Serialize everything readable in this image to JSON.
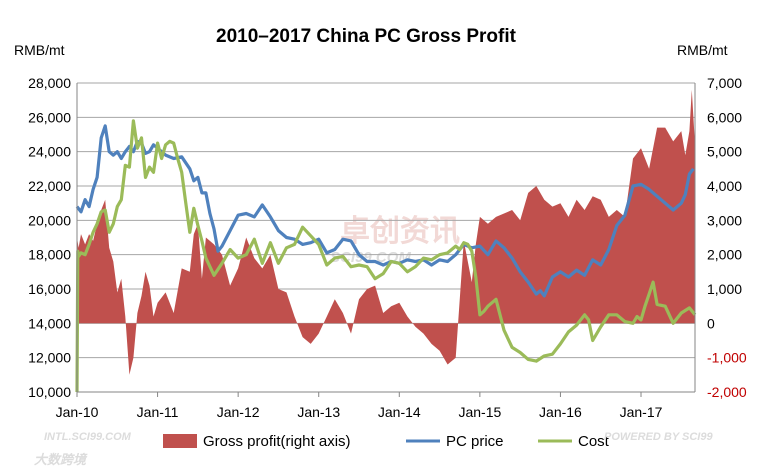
{
  "chart_data": {
    "type": "line",
    "title": "2010–2017 China PC Gross Profit",
    "ylabel_left": "RMB/mt",
    "ylabel_right": "RMB/mt",
    "ylim_left": [
      10000,
      28000
    ],
    "ylim_right": [
      -2000,
      7000
    ],
    "yticks_left": [
      "10,000",
      "12,000",
      "14,000",
      "16,000",
      "18,000",
      "20,000",
      "22,000",
      "24,000",
      "26,000",
      "28,000"
    ],
    "yticks_right": [
      "-2,000",
      "-1,000",
      "0",
      "1,000",
      "2,000",
      "3,000",
      "4,000",
      "5,000",
      "6,000",
      "7,000"
    ],
    "categories": [
      "Jan-10",
      "Jan-11",
      "Jan-12",
      "Jan-13",
      "Jan-14",
      "Jan-15",
      "Jan-16",
      "Jan-17"
    ],
    "x_range_years": [
      2010.0,
      2017.67
    ],
    "series": [
      {
        "name": "Gross profit(right axis)",
        "kind": "area",
        "axis": "right",
        "color": "#c0504d",
        "x": [
          2010.0,
          2010.02,
          2010.05,
          2010.1,
          2010.15,
          2010.2,
          2010.25,
          2010.3,
          2010.35,
          2010.4,
          2010.45,
          2010.5,
          2010.55,
          2010.6,
          2010.65,
          2010.7,
          2010.75,
          2010.8,
          2010.85,
          2010.9,
          2010.95,
          2011.0,
          2011.1,
          2011.2,
          2011.3,
          2011.4,
          2011.45,
          2011.5,
          2011.55,
          2011.6,
          2011.7,
          2011.8,
          2011.9,
          2012.0,
          2012.1,
          2012.2,
          2012.3,
          2012.4,
          2012.5,
          2012.6,
          2012.7,
          2012.8,
          2012.9,
          2013.0,
          2013.1,
          2013.2,
          2013.3,
          2013.4,
          2013.5,
          2013.6,
          2013.7,
          2013.8,
          2013.9,
          2014.0,
          2014.1,
          2014.2,
          2014.3,
          2014.4,
          2014.5,
          2014.6,
          2014.7,
          2014.8,
          2014.9,
          2014.95,
          2015.0,
          2015.1,
          2015.2,
          2015.3,
          2015.4,
          2015.5,
          2015.6,
          2015.7,
          2015.8,
          2015.9,
          2016.0,
          2016.1,
          2016.2,
          2016.3,
          2016.4,
          2016.5,
          2016.6,
          2016.7,
          2016.8,
          2016.9,
          2017.0,
          2017.1,
          2017.2,
          2017.3,
          2017.4,
          2017.5,
          2017.55,
          2017.6,
          2017.63,
          2017.67
        ],
        "values": [
          2500,
          2200,
          2600,
          2300,
          2600,
          2400,
          2900,
          3300,
          3600,
          2200,
          1800,
          900,
          1300,
          200,
          -1500,
          -1000,
          300,
          800,
          1500,
          1100,
          200,
          600,
          900,
          300,
          1600,
          1500,
          2600,
          2900,
          1300,
          2500,
          2300,
          2000,
          1100,
          1600,
          2500,
          1900,
          1600,
          2000,
          1000,
          900,
          200,
          -400,
          -600,
          -300,
          200,
          700,
          300,
          -300,
          700,
          1000,
          1100,
          300,
          500,
          600,
          200,
          -100,
          -300,
          -600,
          -800,
          -1200,
          -1000,
          2400,
          1200,
          2300,
          3100,
          2900,
          3100,
          3200,
          3300,
          3000,
          3800,
          4000,
          3600,
          3400,
          3500,
          3100,
          3600,
          3300,
          3700,
          3600,
          3100,
          3300,
          3100,
          4800,
          5100,
          4500,
          5700,
          5700,
          5300,
          5600,
          4900,
          5600,
          6800,
          5200
        ]
      },
      {
        "name": "PC price",
        "kind": "line",
        "axis": "left",
        "color": "#4f81bd",
        "x": [
          2010.0,
          2010.05,
          2010.1,
          2010.15,
          2010.2,
          2010.25,
          2010.3,
          2010.35,
          2010.4,
          2010.45,
          2010.5,
          2010.55,
          2010.6,
          2010.65,
          2010.7,
          2010.75,
          2010.8,
          2010.85,
          2010.9,
          2010.95,
          2011.0,
          2011.1,
          2011.2,
          2011.3,
          2011.4,
          2011.45,
          2011.5,
          2011.55,
          2011.6,
          2011.65,
          2011.7,
          2011.75,
          2011.8,
          2011.9,
          2012.0,
          2012.1,
          2012.2,
          2012.3,
          2012.4,
          2012.5,
          2012.6,
          2012.7,
          2012.8,
          2012.9,
          2013.0,
          2013.1,
          2013.2,
          2013.3,
          2013.4,
          2013.5,
          2013.6,
          2013.7,
          2013.8,
          2013.9,
          2014.0,
          2014.1,
          2014.2,
          2014.3,
          2014.4,
          2014.5,
          2014.6,
          2014.7,
          2014.8,
          2014.9,
          2015.0,
          2015.1,
          2015.2,
          2015.3,
          2015.4,
          2015.5,
          2015.6,
          2015.7,
          2015.75,
          2015.8,
          2015.9,
          2016.0,
          2016.1,
          2016.2,
          2016.3,
          2016.4,
          2016.5,
          2016.6,
          2016.7,
          2016.8,
          2016.9,
          2017.0,
          2017.1,
          2017.2,
          2017.3,
          2017.4,
          2017.5,
          2017.55,
          2017.6,
          2017.65
        ],
        "values": [
          20800,
          20500,
          21200,
          20800,
          21800,
          22500,
          24800,
          25500,
          24000,
          23800,
          24000,
          23600,
          24000,
          24300,
          24000,
          24600,
          24500,
          23900,
          24000,
          24400,
          24200,
          23800,
          23600,
          23700,
          23000,
          22300,
          22500,
          21600,
          21600,
          20400,
          19500,
          18200,
          18500,
          19400,
          20300,
          20400,
          20200,
          20900,
          20200,
          19400,
          19000,
          18900,
          18600,
          18700,
          18900,
          18100,
          18300,
          18900,
          18800,
          18000,
          17600,
          17600,
          17400,
          17600,
          17500,
          17700,
          17600,
          17700,
          17400,
          17700,
          17600,
          18000,
          18600,
          18400,
          18500,
          18000,
          18800,
          18400,
          17800,
          17000,
          16400,
          15700,
          15900,
          15600,
          16700,
          17000,
          16700,
          17100,
          16800,
          17700,
          17400,
          18300,
          19700,
          20300,
          22000,
          22100,
          21800,
          21400,
          21000,
          20600,
          21000,
          21500,
          22700,
          23000
        ]
      },
      {
        "name": "Cost",
        "kind": "line",
        "axis": "left",
        "color": "#9bbb59",
        "x": [
          2010.0,
          2010.01,
          2010.02,
          2010.05,
          2010.1,
          2010.15,
          2010.2,
          2010.25,
          2010.3,
          2010.35,
          2010.4,
          2010.45,
          2010.5,
          2010.55,
          2010.6,
          2010.65,
          2010.7,
          2010.75,
          2010.8,
          2010.85,
          2010.9,
          2010.95,
          2011.0,
          2011.05,
          2011.1,
          2011.15,
          2011.2,
          2011.25,
          2011.3,
          2011.35,
          2011.4,
          2011.45,
          2011.5,
          2011.55,
          2011.6,
          2011.7,
          2011.8,
          2011.9,
          2012.0,
          2012.1,
          2012.2,
          2012.3,
          2012.4,
          2012.5,
          2012.6,
          2012.7,
          2012.8,
          2012.9,
          2013.0,
          2013.1,
          2013.2,
          2013.3,
          2013.4,
          2013.5,
          2013.6,
          2013.7,
          2013.8,
          2013.9,
          2014.0,
          2014.1,
          2014.2,
          2014.3,
          2014.4,
          2014.5,
          2014.6,
          2014.7,
          2014.75,
          2014.8,
          2014.85,
          2014.9,
          2014.95,
          2015.0,
          2015.05,
          2015.1,
          2015.2,
          2015.3,
          2015.4,
          2015.5,
          2015.6,
          2015.7,
          2015.8,
          2015.9,
          2016.0,
          2016.1,
          2016.2,
          2016.3,
          2016.35,
          2016.4,
          2016.5,
          2016.6,
          2016.7,
          2016.8,
          2016.9,
          2016.95,
          2017.0,
          2017.05,
          2017.1,
          2017.15,
          2017.2,
          2017.3,
          2017.4,
          2017.5,
          2017.6,
          2017.67
        ],
        "values": [
          10000,
          18200,
          17900,
          18100,
          18000,
          18600,
          19300,
          19800,
          20500,
          20600,
          19300,
          19800,
          20800,
          21200,
          23200,
          23100,
          25800,
          24200,
          24800,
          22500,
          23100,
          22800,
          24500,
          23600,
          24400,
          24600,
          24500,
          23600,
          22800,
          21000,
          19300,
          20700,
          19700,
          18800,
          17800,
          16800,
          17500,
          18300,
          17800,
          18000,
          18900,
          17500,
          18700,
          17500,
          18400,
          18600,
          19600,
          19100,
          18600,
          17400,
          17800,
          17900,
          17300,
          17400,
          17300,
          16600,
          16900,
          17600,
          17500,
          17000,
          17300,
          17800,
          17700,
          18000,
          18100,
          18500,
          18300,
          18700,
          18600,
          18200,
          16700,
          14500,
          14700,
          15000,
          15400,
          13600,
          12600,
          12300,
          11900,
          11800,
          12100,
          12200,
          12800,
          13500,
          13900,
          14500,
          14200,
          13000,
          13800,
          14500,
          14500,
          14100,
          14000,
          14400,
          14200,
          15000,
          15700,
          16400,
          15100,
          15000,
          14000,
          14600,
          14900,
          14500
        ]
      }
    ],
    "legend": [
      "Gross profit(right axis)",
      "PC price",
      "Cost"
    ],
    "legend_position": "bottom",
    "grid": true
  },
  "watermarks": {
    "center_cn": "卓创资讯",
    "center_en": "SCI99.COM",
    "bottom_left_en": "INTL.SCI99.COM",
    "bottom_left_cn": "大数跨境",
    "bottom_right_en": "POWERED BY SCI99"
  }
}
